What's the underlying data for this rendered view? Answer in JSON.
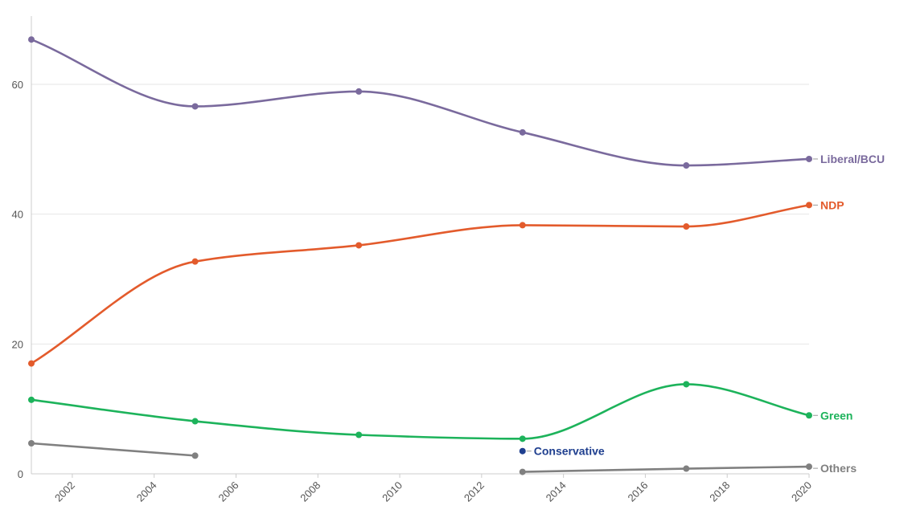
{
  "chart_data": {
    "type": "line",
    "title": "",
    "xlabel": "",
    "ylabel": "",
    "xlim": [
      2001,
      2020
    ],
    "ylim": [
      0,
      70
    ],
    "grid": true,
    "legend": "direct labels at line ends",
    "x_ticks": [
      "2002",
      "2004",
      "2006",
      "2008",
      "2010",
      "2012",
      "2014",
      "2016",
      "2018",
      "2020"
    ],
    "y_ticks": [
      "0",
      "20",
      "40",
      "60"
    ],
    "series": [
      {
        "name": "Liberal/BCU",
        "color": "#7a6a9d",
        "segments": [
          [
            [
              2001,
              66.9
            ],
            [
              2005,
              56.6
            ],
            [
              2009,
              58.9
            ],
            [
              2013,
              52.6
            ],
            [
              2017,
              47.5
            ],
            [
              2020,
              48.5
            ]
          ]
        ]
      },
      {
        "name": "NDP",
        "color": "#e35b2c",
        "segments": [
          [
            [
              2001,
              17.0
            ],
            [
              2005,
              32.7
            ],
            [
              2009,
              35.2
            ],
            [
              2013,
              38.3
            ],
            [
              2017,
              38.1
            ],
            [
              2020,
              41.4
            ]
          ]
        ]
      },
      {
        "name": "Green",
        "color": "#1db35b",
        "segments": [
          [
            [
              2001,
              11.4
            ],
            [
              2005,
              8.1
            ],
            [
              2009,
              6.0
            ],
            [
              2013,
              5.4
            ],
            [
              2017,
              13.8
            ],
            [
              2020,
              9.0
            ]
          ]
        ]
      },
      {
        "name": "Conservative",
        "color": "#1f3f8f",
        "segments": [
          [
            [
              2013,
              3.5
            ]
          ]
        ]
      },
      {
        "name": "Others",
        "color": "#808080",
        "segments": [
          [
            [
              2001,
              4.7
            ],
            [
              2005,
              2.8
            ]
          ],
          [
            [
              2013,
              0.3
            ],
            [
              2017,
              0.8
            ],
            [
              2020,
              1.1
            ]
          ]
        ]
      }
    ]
  }
}
